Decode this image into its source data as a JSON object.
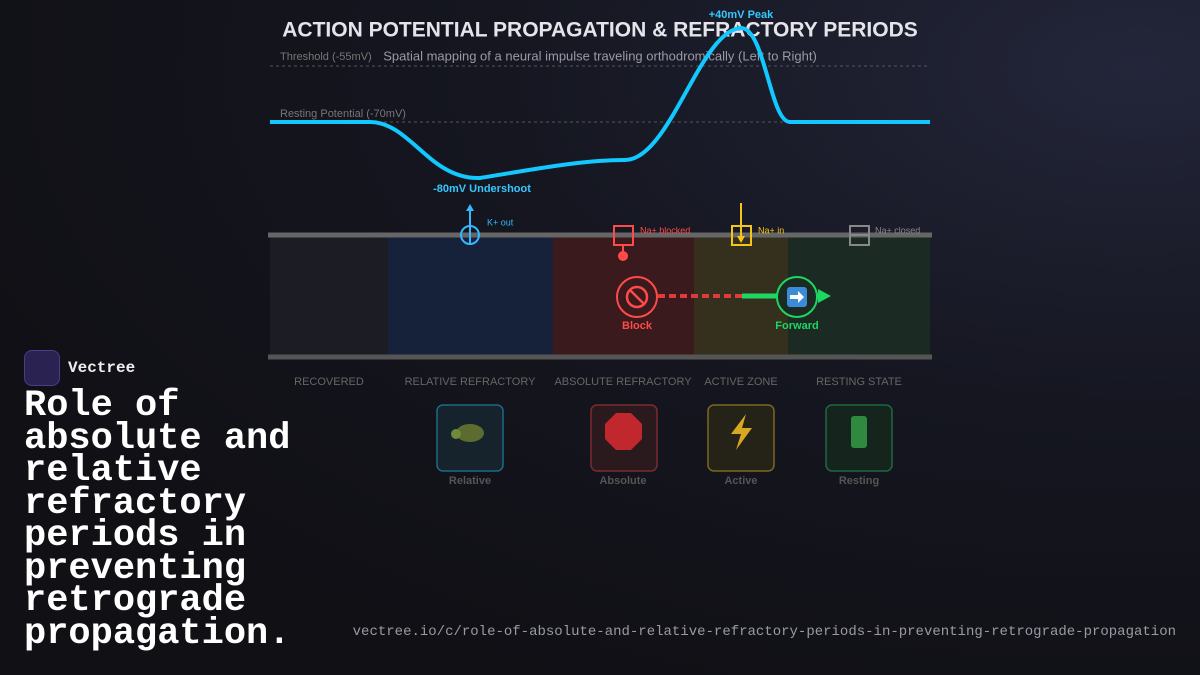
{
  "header": {
    "title": "ACTION POTENTIAL PROPAGATION & REFRACTORY PERIODS",
    "subtitle": "Spatial mapping of a neural impulse traveling orthodromically (Left to Right)"
  },
  "graph": {
    "peak": "+40mV Peak",
    "threshold": "Threshold (-55mV)",
    "resting": "Resting Potential (-70mV)",
    "undershoot": "-80mV Undershoot"
  },
  "channels": [
    "K+ out",
    "Na+ blocked",
    "Na+ in",
    "Na+ closed"
  ],
  "signals": {
    "block": "Block",
    "forward": "Forward"
  },
  "zones": [
    "RECOVERED",
    "RELATIVE REFRACTORY",
    "ABSOLUTE REFRACTORY",
    "ACTIVE ZONE",
    "RESTING STATE"
  ],
  "cards": [
    "Relative",
    "Absolute",
    "Active",
    "Resting"
  ],
  "brand": "Vectree",
  "heading": "Role of absolute and relative refractory periods in preventing retrograde propagation.",
  "url": "vectree.io/c/role-of-absolute-and-relative-refractory-periods-in-preventing-retrograde-propagation"
}
